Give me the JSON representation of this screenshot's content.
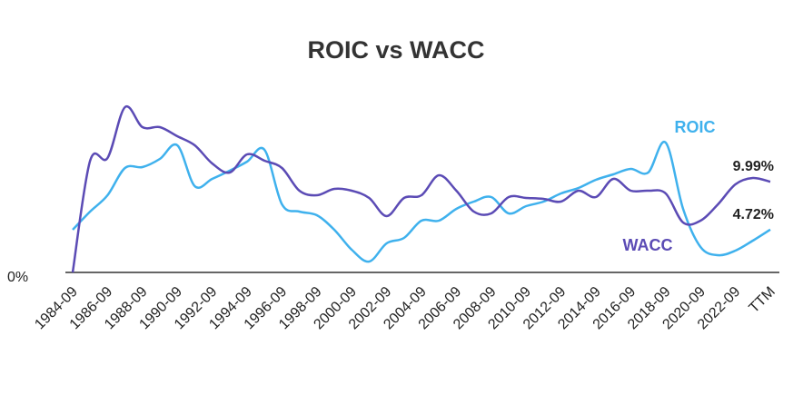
{
  "chart_data": {
    "type": "line",
    "title": "ROIC vs WACC",
    "categories": [
      "1984-09",
      null,
      "1986-09",
      null,
      "1988-09",
      null,
      "1990-09",
      null,
      "1992-09",
      null,
      "1994-09",
      null,
      "1996-09",
      null,
      "1998-09",
      null,
      "2000-09",
      null,
      "2002-09",
      null,
      "2004-09",
      null,
      "2006-09",
      null,
      "2008-09",
      null,
      "2010-09",
      null,
      "2012-09",
      null,
      "2014-09",
      null,
      "2016-09",
      null,
      "2018-09",
      null,
      "2020-09",
      null,
      "2022-09",
      null,
      "TTM"
    ],
    "series": [
      {
        "name": "ROIC",
        "color": "#3fb1ed",
        "values": [
          4.7,
          6.7,
          8.5,
          11.5,
          11.6,
          12.5,
          14.0,
          9.5,
          10.3,
          11.2,
          12.2,
          13.5,
          7.5,
          6.7,
          6.3,
          4.7,
          2.5,
          1.2,
          3.2,
          3.8,
          5.7,
          5.7,
          7.0,
          7.8,
          8.3,
          6.5,
          7.3,
          7.8,
          8.7,
          9.3,
          10.2,
          10.8,
          11.4,
          11.0,
          14.3,
          7.0,
          2.8,
          1.9,
          2.4,
          3.5,
          4.72
        ],
        "value_labels": [
          null,
          null,
          null,
          null,
          null,
          null,
          null,
          null,
          null,
          null,
          null,
          null,
          null,
          null,
          null,
          null,
          null,
          null,
          null,
          null,
          null,
          null,
          null,
          null,
          null,
          null,
          null,
          null,
          null,
          null,
          null,
          null,
          null,
          null,
          null,
          null,
          null,
          null,
          null,
          null,
          "4.72%"
        ]
      },
      {
        "name": "WACC",
        "color": "#5b4bb5",
        "values": [
          0,
          12.3,
          12.6,
          18.2,
          16.0,
          16.0,
          15.0,
          14.0,
          12.0,
          11.0,
          13.0,
          12.3,
          11.5,
          9.0,
          8.5,
          9.2,
          9.0,
          8.2,
          6.2,
          8.2,
          8.5,
          10.7,
          9.0,
          6.7,
          6.5,
          8.3,
          8.2,
          8.1,
          7.8,
          9.0,
          8.3,
          10.3,
          9.0,
          9.0,
          8.7,
          5.5,
          5.7,
          7.5,
          9.7,
          10.4,
          9.99
        ],
        "value_labels": [
          null,
          null,
          null,
          null,
          null,
          null,
          null,
          null,
          null,
          null,
          null,
          null,
          null,
          null,
          null,
          null,
          null,
          null,
          null,
          null,
          null,
          null,
          null,
          null,
          null,
          null,
          null,
          null,
          null,
          null,
          null,
          null,
          null,
          null,
          null,
          null,
          null,
          null,
          null,
          null,
          "9.99%"
        ]
      }
    ],
    "ylim": [
      0,
      20
    ],
    "yticks": [
      {
        "value": 0,
        "label": "0%"
      }
    ]
  }
}
